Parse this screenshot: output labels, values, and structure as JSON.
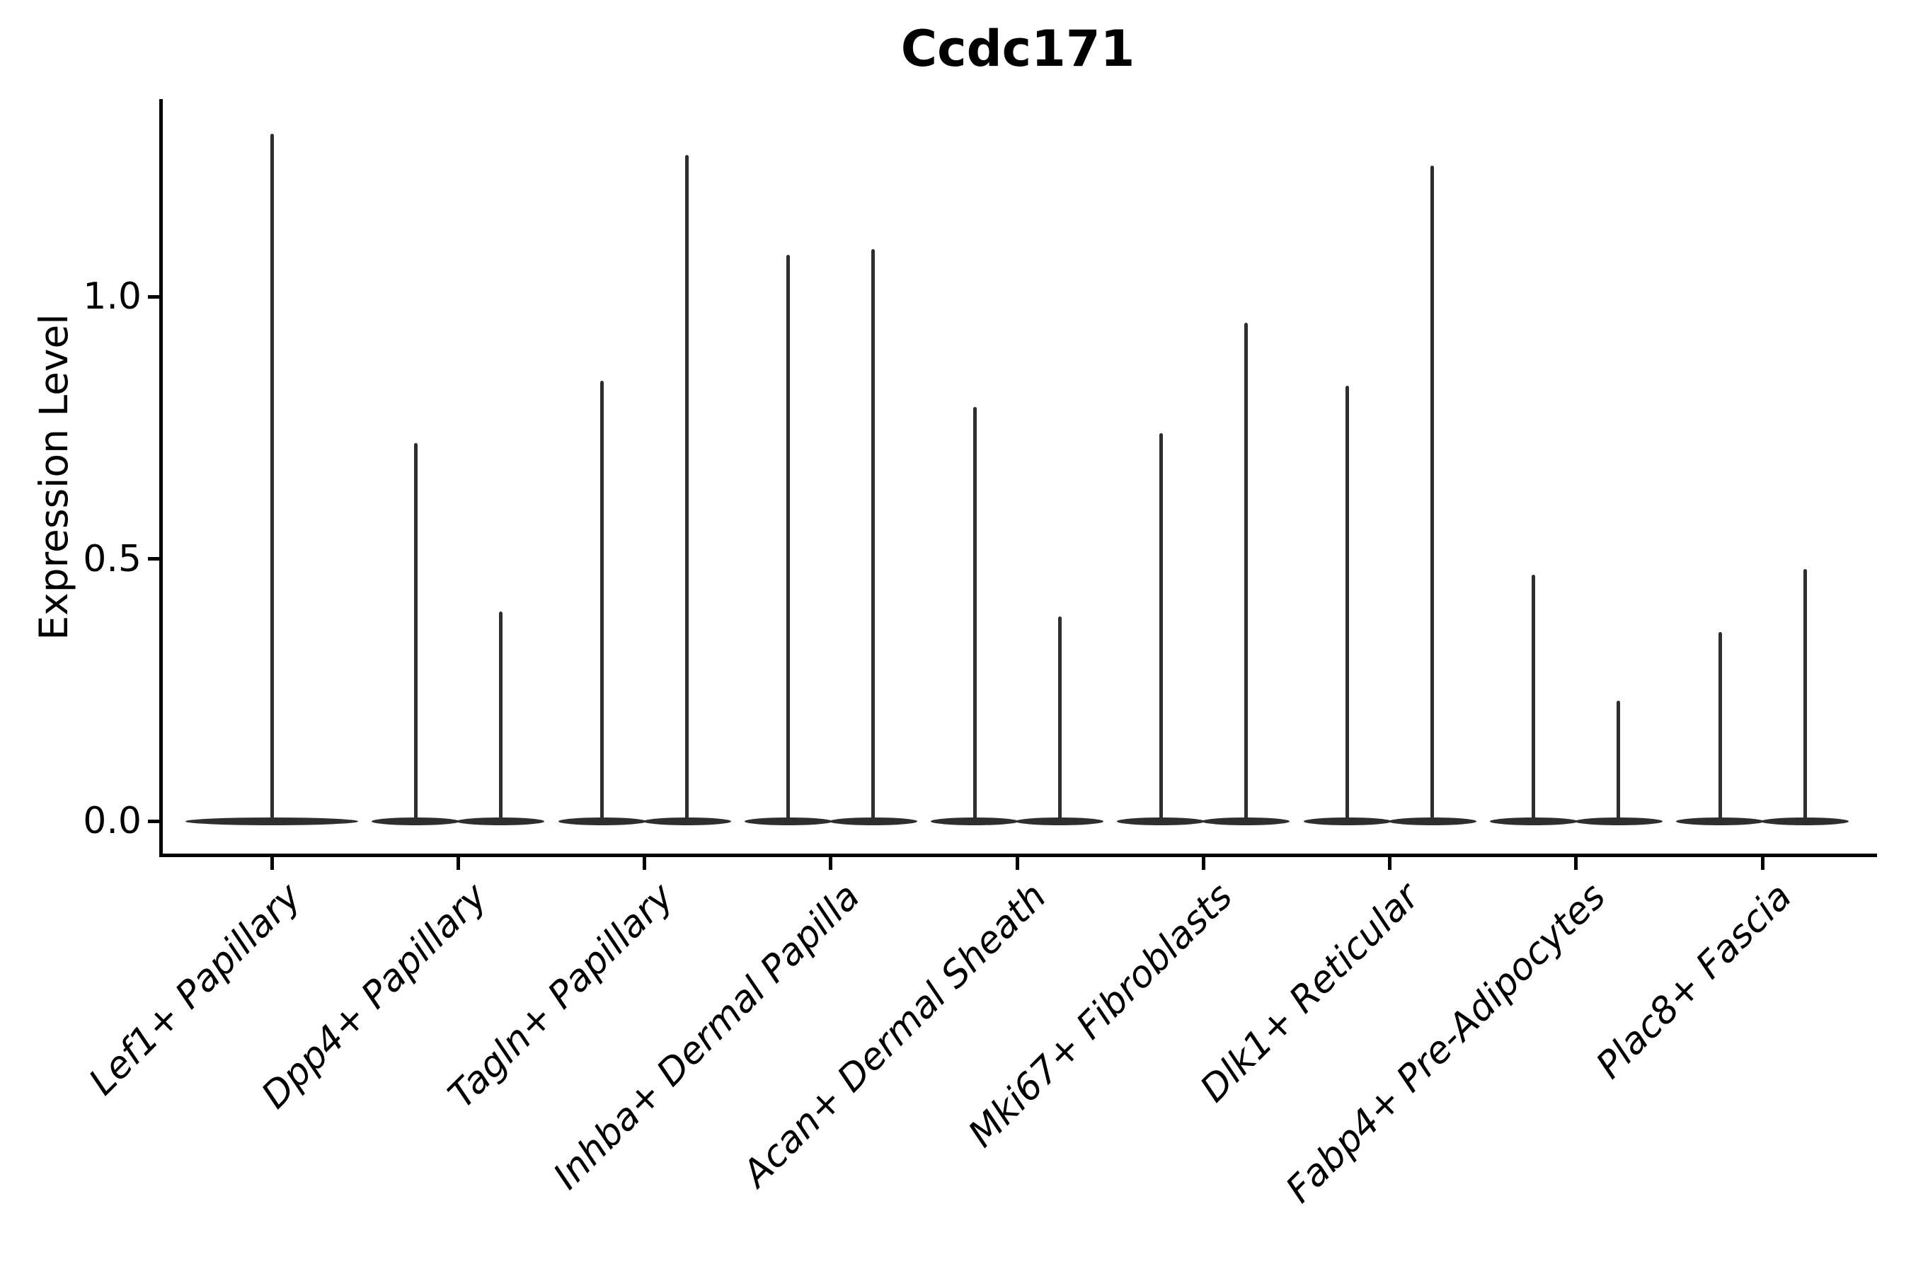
{
  "title": "Ccdc171",
  "y_axis": {
    "label": "Expression Level",
    "ticks": [
      {
        "label": "0.0",
        "value": 0.0
      },
      {
        "label": "0.5",
        "value": 0.5
      },
      {
        "label": "1.0",
        "value": 1.0
      }
    ]
  },
  "colors": {
    "violin": "#2e2e2e",
    "axis": "#000000",
    "text": "#000000",
    "background": "#ffffff"
  },
  "chart_data": {
    "type": "violin",
    "title": "Ccdc171",
    "xlabel": "",
    "ylabel": "Expression Level",
    "ylim": [
      -0.07,
      1.38
    ],
    "yticks": [
      0.0,
      0.5,
      1.0
    ],
    "grid": false,
    "legend": "none",
    "description": "Violin plot of gene expression; each violin's density is concentrated at 0 (flat base lens) with a thin vertical spike reaching the maximum expression value. Categories with two values show two side-by-side violins.",
    "categories": [
      "Lef1+ Papillary",
      "Dpp4+ Papillary",
      "Tagln+ Papillary",
      "Inhba+ Dermal Papilla",
      "Acan+ Dermal Sheath",
      "Mki67+ Fibroblasts",
      "Dlk1+ Reticular",
      "Fabp4+ Pre-Adipocytes",
      "Plac8+ Fascia"
    ],
    "violins": [
      {
        "category": "Lef1+ Papillary",
        "max_values": [
          1.31
        ]
      },
      {
        "category": "Dpp4+ Papillary",
        "max_values": [
          0.72,
          0.4
        ]
      },
      {
        "category": "Tagln+ Papillary",
        "max_values": [
          0.84,
          1.27
        ]
      },
      {
        "category": "Inhba+ Dermal Papilla",
        "max_values": [
          1.08,
          1.09
        ]
      },
      {
        "category": "Acan+ Dermal Sheath",
        "max_values": [
          0.79,
          0.39
        ]
      },
      {
        "category": "Mki67+ Fibroblasts",
        "max_values": [
          0.74,
          0.95
        ]
      },
      {
        "category": "Dlk1+ Reticular",
        "max_values": [
          0.83,
          1.25
        ]
      },
      {
        "category": "Fabp4+ Pre-Adipocytes",
        "max_values": [
          0.47,
          0.23
        ]
      },
      {
        "category": "Plac8+ Fascia",
        "max_values": [
          0.36,
          0.48
        ]
      }
    ],
    "baseline_value": 0.0
  }
}
